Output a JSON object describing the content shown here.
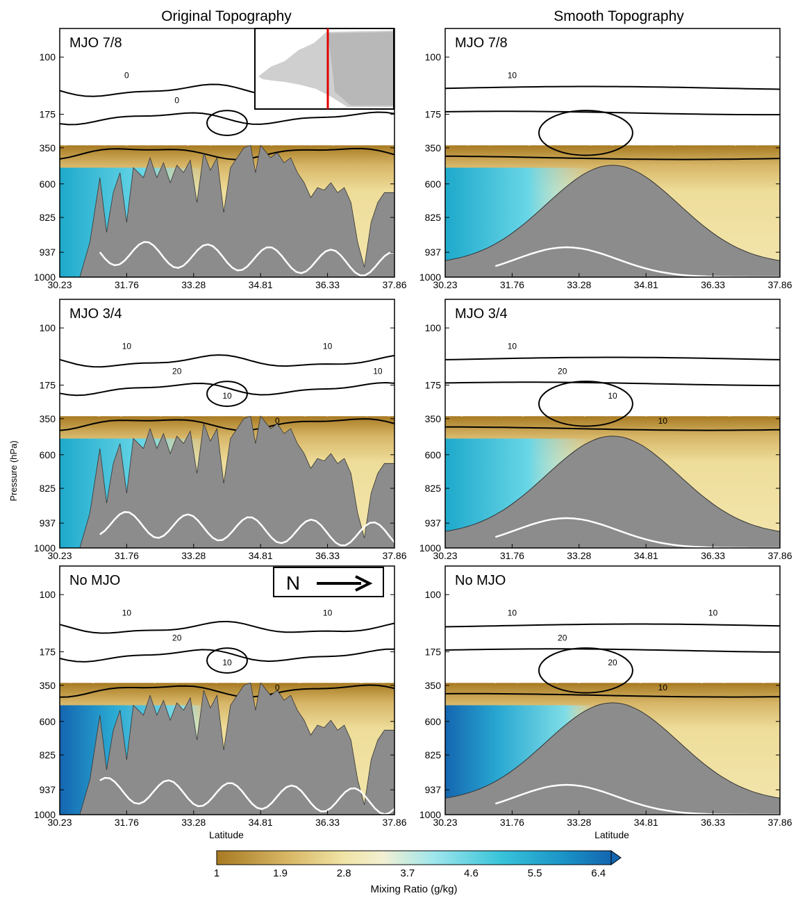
{
  "columns": [
    "Original Topography",
    "Smooth Topography"
  ],
  "y_axis_label": "Pressure (hPa)",
  "x_axis_label": "Latitude",
  "y_ticks": [
    "100",
    "175",
    "350",
    "600",
    "825",
    "937",
    "1000"
  ],
  "x_ticks": [
    "30.23",
    "31.76",
    "33.28",
    "34.81",
    "36.33",
    "37.86"
  ],
  "panels": [
    {
      "label": "MJO 7/8",
      "contour_labels": [
        "0",
        "0"
      ]
    },
    {
      "label": "MJO 7/8",
      "contour_labels": [
        "10"
      ]
    },
    {
      "label": "MJO 3/4",
      "contour_labels": [
        "10",
        "20",
        "10",
        "0",
        "10",
        "10"
      ]
    },
    {
      "label": "MJO 3/4",
      "contour_labels": [
        "10",
        "20",
        "10",
        "10"
      ]
    },
    {
      "label": "No MJO",
      "contour_labels": [
        "10",
        "20",
        "10",
        "0",
        "10"
      ]
    },
    {
      "label": "No MJO",
      "contour_labels": [
        "10",
        "20",
        "20",
        "10",
        "10"
      ]
    }
  ],
  "north_arrow": {
    "label": "N"
  },
  "colorbar": {
    "title": "Mixing Ratio (g/kg)",
    "tick_labels": [
      "1",
      "1.9",
      "2.8",
      "3.7",
      "4.6",
      "5.5",
      "6.4"
    ],
    "min": 1,
    "max": 6.8,
    "colors": {
      "dry": "#a77a22",
      "mid_dry": "#e9d48a",
      "mid": "#f3f0d2",
      "mid_wet": "#7fdde6",
      "wet": "#29b8d2",
      "wettest": "#1466b0"
    }
  },
  "topography_color": "#8c8c8c",
  "chart_data": {
    "type": "heatmap",
    "xlabel": "Latitude",
    "ylabel": "Pressure (hPa)",
    "x_range": [
      30.23,
      37.86
    ],
    "y_ticks": [
      100,
      175,
      350,
      600,
      825,
      937,
      1000
    ],
    "color_scale": {
      "label": "Mixing Ratio (g/kg)",
      "min": 1,
      "max": 6.8
    },
    "panels": [
      {
        "row": "MJO 7/8",
        "column": "Original Topography"
      },
      {
        "row": "MJO 7/8",
        "column": "Smooth Topography"
      },
      {
        "row": "MJO 3/4",
        "column": "Original Topography"
      },
      {
        "row": "MJO 3/4",
        "column": "Smooth Topography"
      },
      {
        "row": "No MJO",
        "column": "Original Topography"
      },
      {
        "row": "No MJO",
        "column": "Smooth Topography"
      }
    ]
  }
}
